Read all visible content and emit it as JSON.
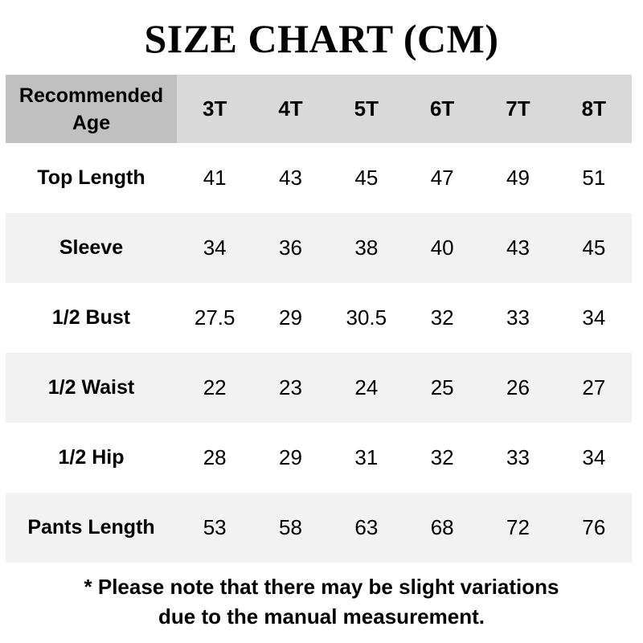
{
  "title": "SIZE CHART (CM)",
  "table": {
    "corner_label": "Recommended Age",
    "sizes": [
      "3T",
      "4T",
      "5T",
      "6T",
      "7T",
      "8T"
    ],
    "rows": [
      {
        "label": "Top Length",
        "values": [
          "41",
          "43",
          "45",
          "47",
          "49",
          "51"
        ]
      },
      {
        "label": "Sleeve",
        "values": [
          "34",
          "36",
          "38",
          "40",
          "43",
          "45"
        ]
      },
      {
        "label": "1/2 Bust",
        "values": [
          "27.5",
          "29",
          "30.5",
          "32",
          "33",
          "34"
        ]
      },
      {
        "label": "1/2 Waist",
        "values": [
          "22",
          "23",
          "24",
          "25",
          "26",
          "27"
        ]
      },
      {
        "label": "1/2 Hip",
        "values": [
          "28",
          "29",
          "31",
          "32",
          "33",
          "34"
        ]
      },
      {
        "label": "Pants Length",
        "values": [
          "53",
          "58",
          "63",
          "68",
          "72",
          "76"
        ]
      }
    ]
  },
  "note": {
    "line1": "* Please note that there may be slight variations",
    "line2": "due to the manual measurement."
  },
  "colors": {
    "corner_bg": "#c0c0c0",
    "header_bg": "#d9d9d9",
    "alt_row_bg": "#f2f2f2"
  }
}
